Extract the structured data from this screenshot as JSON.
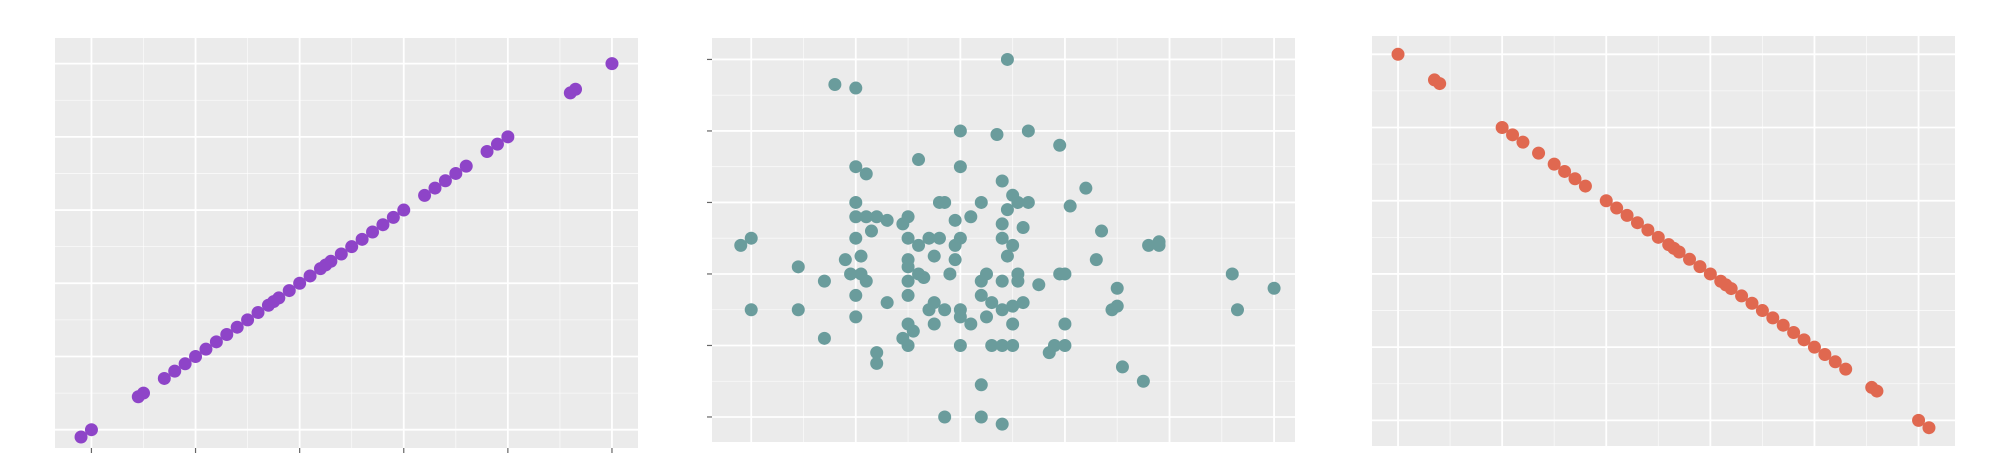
{
  "theme": {
    "panel_bg": "#ebebeb",
    "grid_color": "#ffffff",
    "tick_color": "#666666"
  },
  "chart_data": [
    {
      "type": "scatter",
      "title": "",
      "xlabel": "",
      "ylabel": "",
      "grid": true,
      "legend": "none",
      "color": "#8e44c8",
      "xlim": [
        -0.35,
        5.25
      ],
      "ylim": [
        -0.25,
        5.35
      ],
      "x_ticks": [
        0,
        1,
        2,
        3,
        4,
        5
      ],
      "y_ticks": [
        0,
        1,
        2,
        3,
        4,
        5
      ],
      "x_tick_labels": [
        "",
        "",
        "",
        "",
        "",
        ""
      ],
      "y_tick_labels": [
        "",
        "",
        "",
        "",
        "",
        ""
      ],
      "series": [
        {
          "name": "",
          "x": [
            -0.1,
            0.0,
            0.45,
            0.5,
            0.7,
            0.8,
            0.9,
            1.0,
            1.1,
            1.2,
            1.3,
            1.4,
            1.5,
            1.6,
            1.7,
            1.75,
            1.8,
            1.9,
            2.0,
            2.1,
            2.2,
            2.25,
            2.3,
            2.4,
            2.5,
            2.6,
            2.7,
            2.8,
            2.9,
            3.0,
            3.2,
            3.3,
            3.4,
            3.5,
            3.6,
            3.8,
            3.9,
            4.0,
            4.6,
            4.65,
            5.0
          ],
          "y": [
            -0.1,
            0.0,
            0.45,
            0.5,
            0.7,
            0.8,
            0.9,
            1.0,
            1.1,
            1.2,
            1.3,
            1.4,
            1.5,
            1.6,
            1.7,
            1.75,
            1.8,
            1.9,
            2.0,
            2.1,
            2.2,
            2.25,
            2.3,
            2.4,
            2.5,
            2.6,
            2.7,
            2.8,
            2.9,
            3.0,
            3.2,
            3.3,
            3.4,
            3.5,
            3.6,
            3.8,
            3.9,
            4.0,
            4.6,
            4.65,
            5.0
          ]
        }
      ]
    },
    {
      "type": "scatter",
      "title": "",
      "xlabel": "",
      "ylabel": "",
      "grid": true,
      "legend": "none",
      "color": "#6a9c9c",
      "xlim": [
        -0.75,
        10.4
      ],
      "ylim": [
        -0.35,
        5.3
      ],
      "x_ticks": [
        0,
        2,
        4,
        6,
        8,
        10
      ],
      "y_ticks": [
        0,
        1,
        2,
        3,
        4,
        5
      ],
      "x_tick_labels": [
        "",
        "",
        "",
        "",
        "",
        ""
      ],
      "y_tick_labels": [
        "",
        "",
        "",
        "",
        "",
        ""
      ],
      "series": [
        {
          "name": "",
          "x": [
            4.9,
            1.6,
            2.0,
            4.0,
            4.7,
            5.3,
            5.9,
            2.0,
            3.2,
            4.0,
            2.2,
            4.8,
            6.4,
            5.0,
            5.3,
            2.0,
            3.6,
            3.7,
            4.4,
            4.9,
            5.1,
            6.1,
            2.0,
            2.2,
            2.4,
            2.6,
            2.9,
            3.0,
            3.9,
            4.2,
            4.8,
            5.2,
            6.7,
            -0.2,
            0.0,
            2.0,
            2.3,
            3.0,
            3.2,
            3.4,
            3.6,
            3.9,
            4.0,
            4.8,
            5.0,
            7.6,
            7.8,
            7.8,
            1.8,
            2.1,
            3.0,
            3.5,
            3.9,
            4.9,
            6.6,
            0.9,
            1.9,
            2.1,
            3.0,
            3.2,
            3.8,
            4.5,
            5.1,
            5.9,
            6.0,
            9.2,
            1.4,
            2.2,
            3.0,
            3.3,
            4.4,
            4.8,
            5.1,
            5.5,
            7.0,
            10.0,
            0.0,
            0.9,
            2.0,
            2.6,
            3.0,
            3.4,
            3.5,
            3.7,
            4.0,
            4.4,
            4.6,
            4.8,
            5.0,
            5.2,
            6.9,
            7.0,
            9.3,
            2.0,
            3.0,
            3.5,
            4.0,
            4.2,
            4.5,
            5.0,
            6.0,
            1.4,
            2.9,
            3.1,
            3.0,
            4.0,
            4.6,
            4.8,
            5.0,
            5.8,
            6.0,
            2.4,
            5.7,
            2.4,
            7.1,
            7.5,
            4.4,
            3.7,
            4.4,
            4.8
          ],
          "y": [
            5.0,
            4.65,
            4.6,
            4.0,
            3.95,
            4.0,
            3.8,
            3.5,
            3.6,
            3.5,
            3.4,
            3.3,
            3.2,
            3.1,
            3.0,
            3.0,
            3.0,
            3.0,
            3.0,
            2.9,
            3.0,
            2.95,
            2.8,
            2.8,
            2.8,
            2.75,
            2.7,
            2.8,
            2.75,
            2.8,
            2.7,
            2.65,
            2.6,
            2.4,
            2.5,
            2.5,
            2.6,
            2.5,
            2.4,
            2.5,
            2.5,
            2.4,
            2.5,
            2.5,
            2.4,
            2.4,
            2.45,
            2.4,
            2.2,
            2.25,
            2.2,
            2.25,
            2.2,
            2.25,
            2.2,
            2.1,
            2.0,
            2.0,
            2.1,
            2.0,
            2.0,
            2.0,
            2.0,
            2.0,
            2.0,
            2.0,
            1.9,
            1.9,
            1.9,
            1.95,
            1.9,
            1.9,
            1.9,
            1.85,
            1.8,
            1.8,
            1.5,
            1.5,
            1.7,
            1.6,
            1.7,
            1.5,
            1.6,
            1.5,
            1.5,
            1.7,
            1.6,
            1.5,
            1.55,
            1.6,
            1.5,
            1.55,
            1.5,
            1.4,
            1.3,
            1.3,
            1.4,
            1.3,
            1.4,
            1.3,
            1.3,
            1.1,
            1.1,
            1.2,
            1.0,
            1.0,
            1.0,
            1.0,
            1.0,
            1.0,
            1.0,
            0.9,
            0.9,
            0.75,
            0.7,
            0.5,
            0.45,
            0.0,
            0.0,
            -0.1
          ]
        }
      ]
    },
    {
      "type": "scatter",
      "title": "",
      "xlabel": "",
      "ylabel": "",
      "grid": true,
      "legend": "none",
      "color": "#e06850",
      "xlim": [
        -0.25,
        5.35
      ],
      "ylim": [
        -0.35,
        5.25
      ],
      "x_ticks": [
        0,
        1,
        2,
        3,
        4,
        5
      ],
      "y_ticks": [
        0,
        1,
        2,
        3,
        4,
        5
      ],
      "x_tick_labels": [
        "",
        "",
        "",
        "",
        "",
        ""
      ],
      "y_tick_labels": [
        "",
        "",
        "",
        "",
        "",
        ""
      ],
      "series": [
        {
          "name": "",
          "x": [
            0.0,
            0.35,
            0.4,
            1.0,
            1.1,
            1.2,
            1.35,
            1.5,
            1.6,
            1.7,
            1.8,
            2.0,
            2.1,
            2.2,
            2.3,
            2.4,
            2.5,
            2.6,
            2.65,
            2.7,
            2.8,
            2.9,
            3.0,
            3.1,
            3.15,
            3.2,
            3.3,
            3.4,
            3.5,
            3.6,
            3.7,
            3.8,
            3.9,
            4.0,
            4.1,
            4.2,
            4.3,
            4.55,
            4.6,
            5.0,
            5.1
          ],
          "y": [
            5.0,
            4.65,
            4.6,
            4.0,
            3.9,
            3.8,
            3.65,
            3.5,
            3.4,
            3.3,
            3.2,
            3.0,
            2.9,
            2.8,
            2.7,
            2.6,
            2.5,
            2.4,
            2.35,
            2.3,
            2.2,
            2.1,
            2.0,
            1.9,
            1.85,
            1.8,
            1.7,
            1.6,
            1.5,
            1.4,
            1.3,
            1.2,
            1.1,
            1.0,
            0.9,
            0.8,
            0.7,
            0.45,
            0.4,
            0.0,
            -0.1
          ]
        }
      ]
    }
  ]
}
